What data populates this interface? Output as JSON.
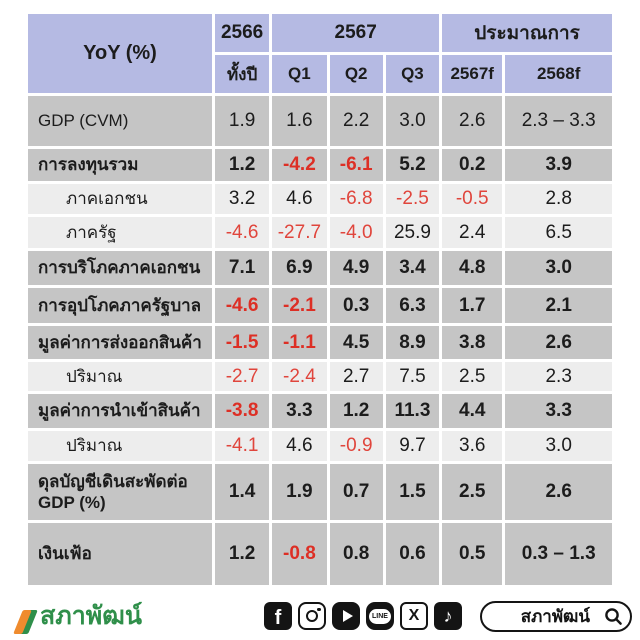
{
  "colors": {
    "header_bg": "#b5bae3",
    "row_gray": "#c5c5c5",
    "row_light": "#ededed",
    "negative_red": "#dd2f25",
    "text_dark": "#1c1c1c",
    "logo_green": "#2f8f4a",
    "logo_orange": "#ef8b2e"
  },
  "table": {
    "header": {
      "yoy_label": "YoY (%)",
      "year_2566": "2566",
      "year_2567": "2567",
      "forecast_label": "ประมาณการ",
      "sub_labels": [
        "ทั้งปี",
        "Q1",
        "Q2",
        "Q3",
        "2567f",
        "2568f"
      ]
    },
    "rows": [
      {
        "label": "GDP (CVM)",
        "shade": "gray",
        "bold": false,
        "indent": false,
        "values": [
          {
            "v": "1.9"
          },
          {
            "v": "1.6"
          },
          {
            "v": "2.2"
          },
          {
            "v": "3.0"
          },
          {
            "v": "2.6"
          },
          {
            "v": "2.3 – 3.3"
          }
        ]
      },
      {
        "label": "การลงทุนรวม",
        "shade": "gray",
        "bold": true,
        "indent": false,
        "values": [
          {
            "v": "1.2"
          },
          {
            "v": "-4.2",
            "red": true
          },
          {
            "v": "-6.1",
            "red": true
          },
          {
            "v": "5.2"
          },
          {
            "v": "0.2"
          },
          {
            "v": "3.9"
          }
        ]
      },
      {
        "label": "ภาคเอกชน",
        "shade": "light",
        "bold": false,
        "indent": true,
        "values": [
          {
            "v": "3.2"
          },
          {
            "v": "4.6"
          },
          {
            "v": "-6.8",
            "red": true
          },
          {
            "v": "-2.5",
            "red": true
          },
          {
            "v": "-0.5",
            "red": true
          },
          {
            "v": "2.8"
          }
        ]
      },
      {
        "label": "ภาครัฐ",
        "shade": "light",
        "bold": false,
        "indent": true,
        "values": [
          {
            "v": "-4.6",
            "red": true
          },
          {
            "v": "-27.7",
            "red": true
          },
          {
            "v": "-4.0",
            "red": true
          },
          {
            "v": "25.9"
          },
          {
            "v": "2.4"
          },
          {
            "v": "6.5"
          }
        ]
      },
      {
        "label": "การบริโภคภาคเอกชน",
        "shade": "gray",
        "bold": true,
        "indent": false,
        "values": [
          {
            "v": "7.1"
          },
          {
            "v": "6.9"
          },
          {
            "v": "4.9"
          },
          {
            "v": "3.4"
          },
          {
            "v": "4.8"
          },
          {
            "v": "3.0"
          }
        ]
      },
      {
        "label": "การอุปโภคภาครัฐบาล",
        "shade": "gray",
        "bold": true,
        "indent": false,
        "values": [
          {
            "v": "-4.6",
            "red": true
          },
          {
            "v": "-2.1",
            "red": true
          },
          {
            "v": "0.3"
          },
          {
            "v": "6.3"
          },
          {
            "v": "1.7"
          },
          {
            "v": "2.1"
          }
        ]
      },
      {
        "label": "มูลค่าการส่งออกสินค้า",
        "shade": "gray",
        "bold": true,
        "indent": false,
        "values": [
          {
            "v": "-1.5",
            "red": true
          },
          {
            "v": "-1.1",
            "red": true
          },
          {
            "v": "4.5"
          },
          {
            "v": "8.9"
          },
          {
            "v": "3.8"
          },
          {
            "v": "2.6"
          }
        ]
      },
      {
        "label": "ปริมาณ",
        "shade": "light",
        "bold": false,
        "indent": true,
        "values": [
          {
            "v": "-2.7",
            "red": true
          },
          {
            "v": "-2.4",
            "red": true
          },
          {
            "v": "2.7"
          },
          {
            "v": "7.5"
          },
          {
            "v": "2.5"
          },
          {
            "v": "2.3"
          }
        ]
      },
      {
        "label": "มูลค่าการนำเข้าสินค้า",
        "shade": "gray",
        "bold": true,
        "indent": false,
        "values": [
          {
            "v": "-3.8",
            "red": true
          },
          {
            "v": "3.3"
          },
          {
            "v": "1.2"
          },
          {
            "v": "11.3"
          },
          {
            "v": "4.4"
          },
          {
            "v": "3.3"
          }
        ]
      },
      {
        "label": "ปริมาณ",
        "shade": "light",
        "bold": false,
        "indent": true,
        "values": [
          {
            "v": "-4.1",
            "red": true
          },
          {
            "v": "4.6"
          },
          {
            "v": "-0.9",
            "red": true
          },
          {
            "v": "9.7"
          },
          {
            "v": "3.6"
          },
          {
            "v": "3.0"
          }
        ]
      },
      {
        "label": "ดุลบัญชีเดินสะพัดต่อ GDP (%)",
        "shade": "gray",
        "bold": true,
        "indent": false,
        "values": [
          {
            "v": "1.4"
          },
          {
            "v": "1.9"
          },
          {
            "v": "0.7"
          },
          {
            "v": "1.5"
          },
          {
            "v": "2.5"
          },
          {
            "v": "2.6"
          }
        ]
      },
      {
        "label": "เงินเฟ้อ",
        "shade": "gray",
        "bold": true,
        "indent": false,
        "values": [
          {
            "v": "1.2"
          },
          {
            "v": "-0.8",
            "red": true
          },
          {
            "v": "0.8"
          },
          {
            "v": "0.6"
          },
          {
            "v": "0.5"
          },
          {
            "v": "0.3 – 1.3"
          }
        ]
      }
    ]
  },
  "footer": {
    "logo_text": "สภาพัฒน์",
    "search_label": "สภาพัฒน์",
    "social_icons": [
      {
        "name": "facebook-icon",
        "glyph": "f",
        "variant": "solid fb"
      },
      {
        "name": "instagram-icon",
        "glyph": "",
        "variant": "insta"
      },
      {
        "name": "youtube-icon",
        "glyph": "",
        "variant": "yt"
      },
      {
        "name": "line-icon",
        "glyph": "LINE",
        "variant": "lineapp"
      },
      {
        "name": "x-icon",
        "glyph": "X",
        "variant": "outline"
      },
      {
        "name": "tiktok-icon",
        "glyph": "♪",
        "variant": "solid tiktok"
      }
    ]
  },
  "chart_data": {
    "type": "table",
    "title": "YoY (%)",
    "columns": [
      "YoY (%)",
      "2566 ทั้งปี",
      "2567 Q1",
      "2567 Q2",
      "2567 Q3",
      "2567f",
      "2568f"
    ],
    "rows": [
      [
        "GDP (CVM)",
        1.9,
        1.6,
        2.2,
        3.0,
        2.6,
        "2.3 – 3.3"
      ],
      [
        "การลงทุนรวม",
        1.2,
        -4.2,
        -6.1,
        5.2,
        0.2,
        3.9
      ],
      [
        "ภาคเอกชน",
        3.2,
        4.6,
        -6.8,
        -2.5,
        -0.5,
        2.8
      ],
      [
        "ภาครัฐ",
        -4.6,
        -27.7,
        -4.0,
        25.9,
        2.4,
        6.5
      ],
      [
        "การบริโภคภาคเอกชน",
        7.1,
        6.9,
        4.9,
        3.4,
        4.8,
        3.0
      ],
      [
        "การอุปโภคภาครัฐบาล",
        -4.6,
        -2.1,
        0.3,
        6.3,
        1.7,
        2.1
      ],
      [
        "มูลค่าการส่งออกสินค้า",
        -1.5,
        -1.1,
        4.5,
        8.9,
        3.8,
        2.6
      ],
      [
        "ปริมาณ",
        -2.7,
        -2.4,
        2.7,
        7.5,
        2.5,
        2.3
      ],
      [
        "มูลค่าการนำเข้าสินค้า",
        -3.8,
        3.3,
        1.2,
        11.3,
        4.4,
        3.3
      ],
      [
        "ปริมาณ",
        -4.1,
        4.6,
        -0.9,
        9.7,
        3.6,
        3.0
      ],
      [
        "ดุลบัญชีเดินสะพัดต่อ GDP (%)",
        1.4,
        1.9,
        0.7,
        1.5,
        2.5,
        2.6
      ],
      [
        "เงินเฟ้อ",
        1.2,
        -0.8,
        0.8,
        0.6,
        0.5,
        "0.3 – 1.3"
      ]
    ],
    "notes": "negative values shown in red"
  }
}
